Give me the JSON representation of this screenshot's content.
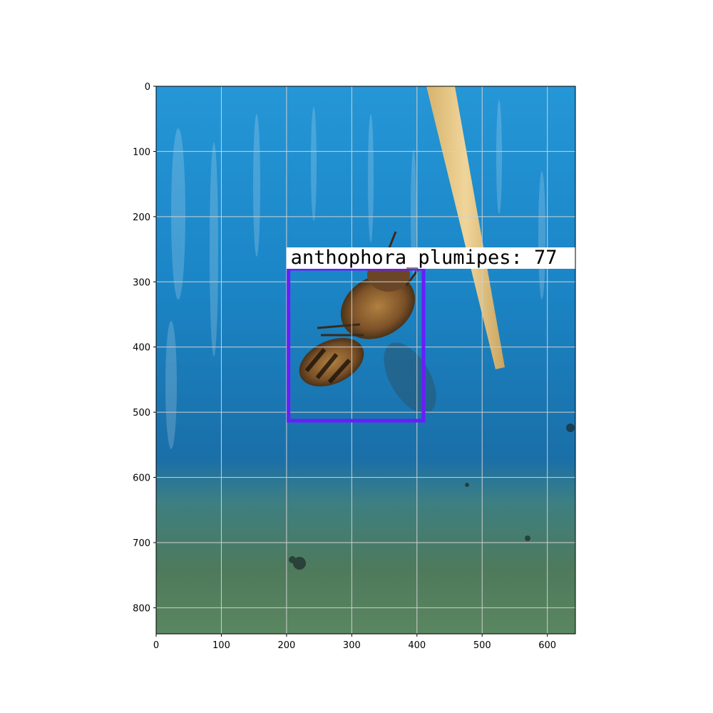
{
  "image": {
    "x_range": [
      0,
      643
    ],
    "y_range": [
      0,
      840
    ],
    "x_ticks": [
      0,
      100,
      200,
      300,
      400,
      500,
      600
    ],
    "y_ticks": [
      0,
      100,
      200,
      300,
      400,
      500,
      600,
      700,
      800
    ],
    "grid": true,
    "scene_colors": {
      "water_top": "#1f8fd0",
      "water_mid": "#1a6fa8",
      "water_bottom": "#4e7a5c",
      "stick": "#e6c688",
      "bee_body": "#8a5a2c"
    }
  },
  "detection": {
    "label": "anthophora_plumipes: 77",
    "class_name": "anthophora_plumipes",
    "score": 77,
    "box": {
      "x1": 203,
      "y1": 280,
      "x2": 410,
      "y2": 513
    },
    "box_color": "#6a1dfa"
  }
}
